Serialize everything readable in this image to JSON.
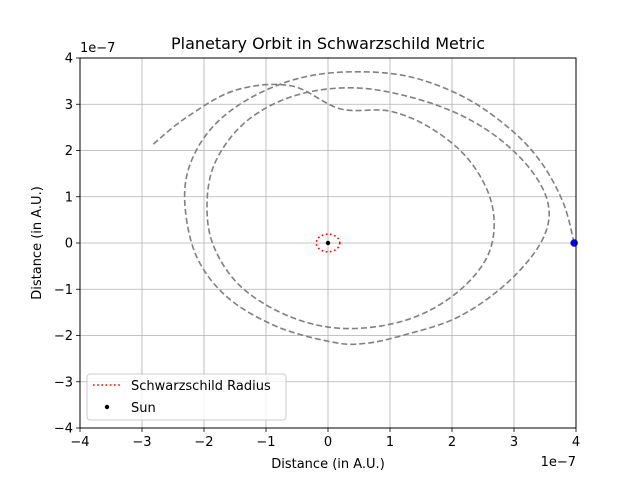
{
  "chart_data": {
    "type": "line",
    "title": "Planetary Orbit in Schwarzschild Metric",
    "xlabel": "Distance (in A.U.)",
    "ylabel": "Distance (in A.U.)",
    "x_offset_label": "1e−7",
    "y_offset_label": "1e−7",
    "xlim": [
      -4,
      4
    ],
    "ylim": [
      -4,
      4
    ],
    "xticks": [
      -4,
      -3,
      -2,
      -1,
      0,
      1,
      2,
      3,
      4
    ],
    "yticks": [
      -4,
      -3,
      -2,
      -1,
      0,
      1,
      2,
      3,
      4
    ],
    "xtick_labels": [
      "−4",
      "−3",
      "−2",
      "−1",
      "0",
      "1",
      "2",
      "3",
      "4"
    ],
    "ytick_labels": [
      "−4",
      "−3",
      "−2",
      "−1",
      "0",
      "1",
      "2",
      "3",
      "4"
    ],
    "grid": true,
    "legend_position": "lower-left",
    "series": [
      {
        "name": "",
        "style": "dashed",
        "color": "#808080",
        "points": [
          [
            3.97,
            0.0
          ],
          [
            3.8,
            0.85
          ],
          [
            3.45,
            1.72
          ],
          [
            2.95,
            2.45
          ],
          [
            2.2,
            3.15
          ],
          [
            1.3,
            3.6
          ],
          [
            0.35,
            3.7
          ],
          [
            -0.5,
            3.55
          ],
          [
            -1.3,
            3.1
          ],
          [
            -1.9,
            2.45
          ],
          [
            -2.25,
            1.6
          ],
          [
            -2.3,
            0.7
          ],
          [
            -2.1,
            -0.35
          ],
          [
            -1.6,
            -1.2
          ],
          [
            -0.8,
            -1.82
          ],
          [
            0.1,
            -2.15
          ],
          [
            0.6,
            -2.17
          ],
          [
            1.2,
            -2.0
          ],
          [
            2.1,
            -1.6
          ],
          [
            2.9,
            -0.85
          ],
          [
            3.45,
            0.05
          ],
          [
            3.55,
            0.85
          ],
          [
            3.2,
            1.7
          ],
          [
            2.5,
            2.5
          ],
          [
            1.6,
            3.05
          ],
          [
            0.5,
            3.35
          ],
          [
            -0.5,
            3.2
          ],
          [
            -1.3,
            2.65
          ],
          [
            -1.8,
            1.8
          ],
          [
            -1.95,
            0.9
          ],
          [
            -1.85,
            -0.05
          ],
          [
            -1.4,
            -0.95
          ],
          [
            -0.6,
            -1.6
          ],
          [
            0.3,
            -1.85
          ],
          [
            1.3,
            -1.65
          ],
          [
            2.1,
            -1.05
          ],
          [
            2.6,
            -0.2
          ],
          [
            2.65,
            0.8
          ],
          [
            2.3,
            1.75
          ],
          [
            1.7,
            2.45
          ],
          [
            1.0,
            2.85
          ],
          [
            0.2,
            2.9
          ],
          [
            -0.6,
            3.4
          ],
          [
            -1.5,
            3.3
          ],
          [
            -2.3,
            2.7
          ],
          [
            -2.85,
            2.1
          ]
        ]
      },
      {
        "name": "Schwarzschild Radius",
        "style": "dotted",
        "color": "#ff0000",
        "shape": "circle",
        "center": [
          0,
          0
        ],
        "radius": 0.19
      },
      {
        "name": "Sun",
        "style": "marker",
        "color": "#000000",
        "points": [
          [
            0,
            0
          ]
        ]
      },
      {
        "name": "",
        "style": "marker",
        "color": "#0000ff",
        "points": [
          [
            3.97,
            0.0
          ]
        ]
      }
    ]
  }
}
